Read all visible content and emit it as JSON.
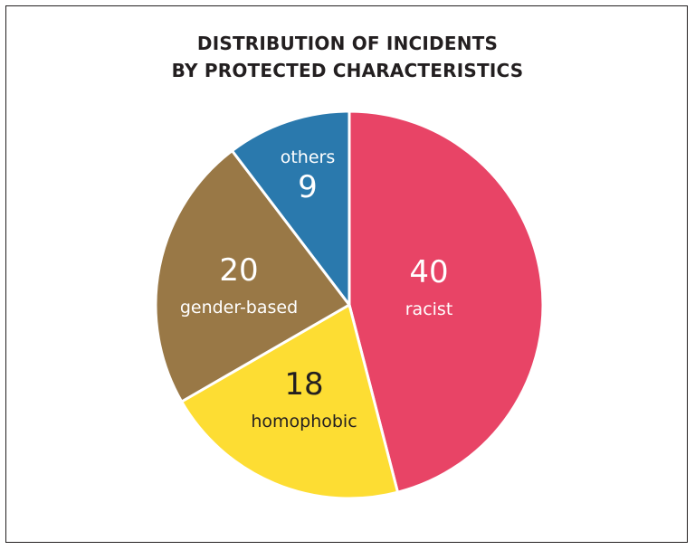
{
  "chart_data": {
    "type": "pie",
    "title_lines": [
      "DISTRIBUTION OF INCIDENTS",
      "BY PROTECTED CHARACTERISTICS"
    ],
    "slices": [
      {
        "label": "racist",
        "value": 40,
        "color": "#e84466",
        "text_color": "#ffffff"
      },
      {
        "label": "homophobic",
        "value": 18,
        "color": "#fddd33",
        "text_color": "#231f20"
      },
      {
        "label": "gender-based",
        "value": 20,
        "color": "#997846",
        "text_color": "#ffffff"
      },
      {
        "label": "others",
        "value": 9,
        "color": "#2a79ad",
        "text_color": "#ffffff"
      }
    ],
    "start": "12 o'clock",
    "direction": "clockwise",
    "legend": "none (labels on slices)"
  }
}
